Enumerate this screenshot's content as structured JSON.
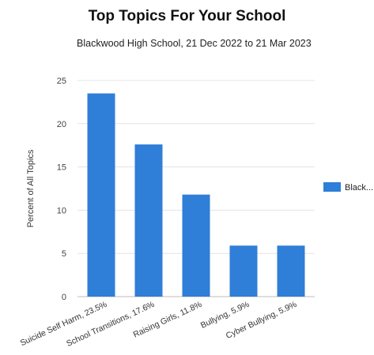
{
  "chart_data": {
    "type": "bar",
    "title": "Top Topics For Your School",
    "subtitle": "Blackwood High School, 21 Dec 2022 to 21 Mar 2023",
    "ylabel": "Percent of All Topics",
    "xlabel": "",
    "categories": [
      "Suicide Self Harm, 23.5%",
      "School Transitions, 17.6%",
      "Raising Girls, 11.8%",
      "Bullying, 5.9%",
      "Cyber Bullying, 5.9%"
    ],
    "series": [
      {
        "name": "Black...",
        "values": [
          23.5,
          17.6,
          11.8,
          5.9,
          5.9
        ]
      }
    ],
    "ylim": [
      0,
      25
    ],
    "yticks": [
      0,
      5,
      10,
      15,
      20,
      25
    ],
    "grid": true,
    "legend": "right",
    "bar_color": "#2f7ed8"
  }
}
